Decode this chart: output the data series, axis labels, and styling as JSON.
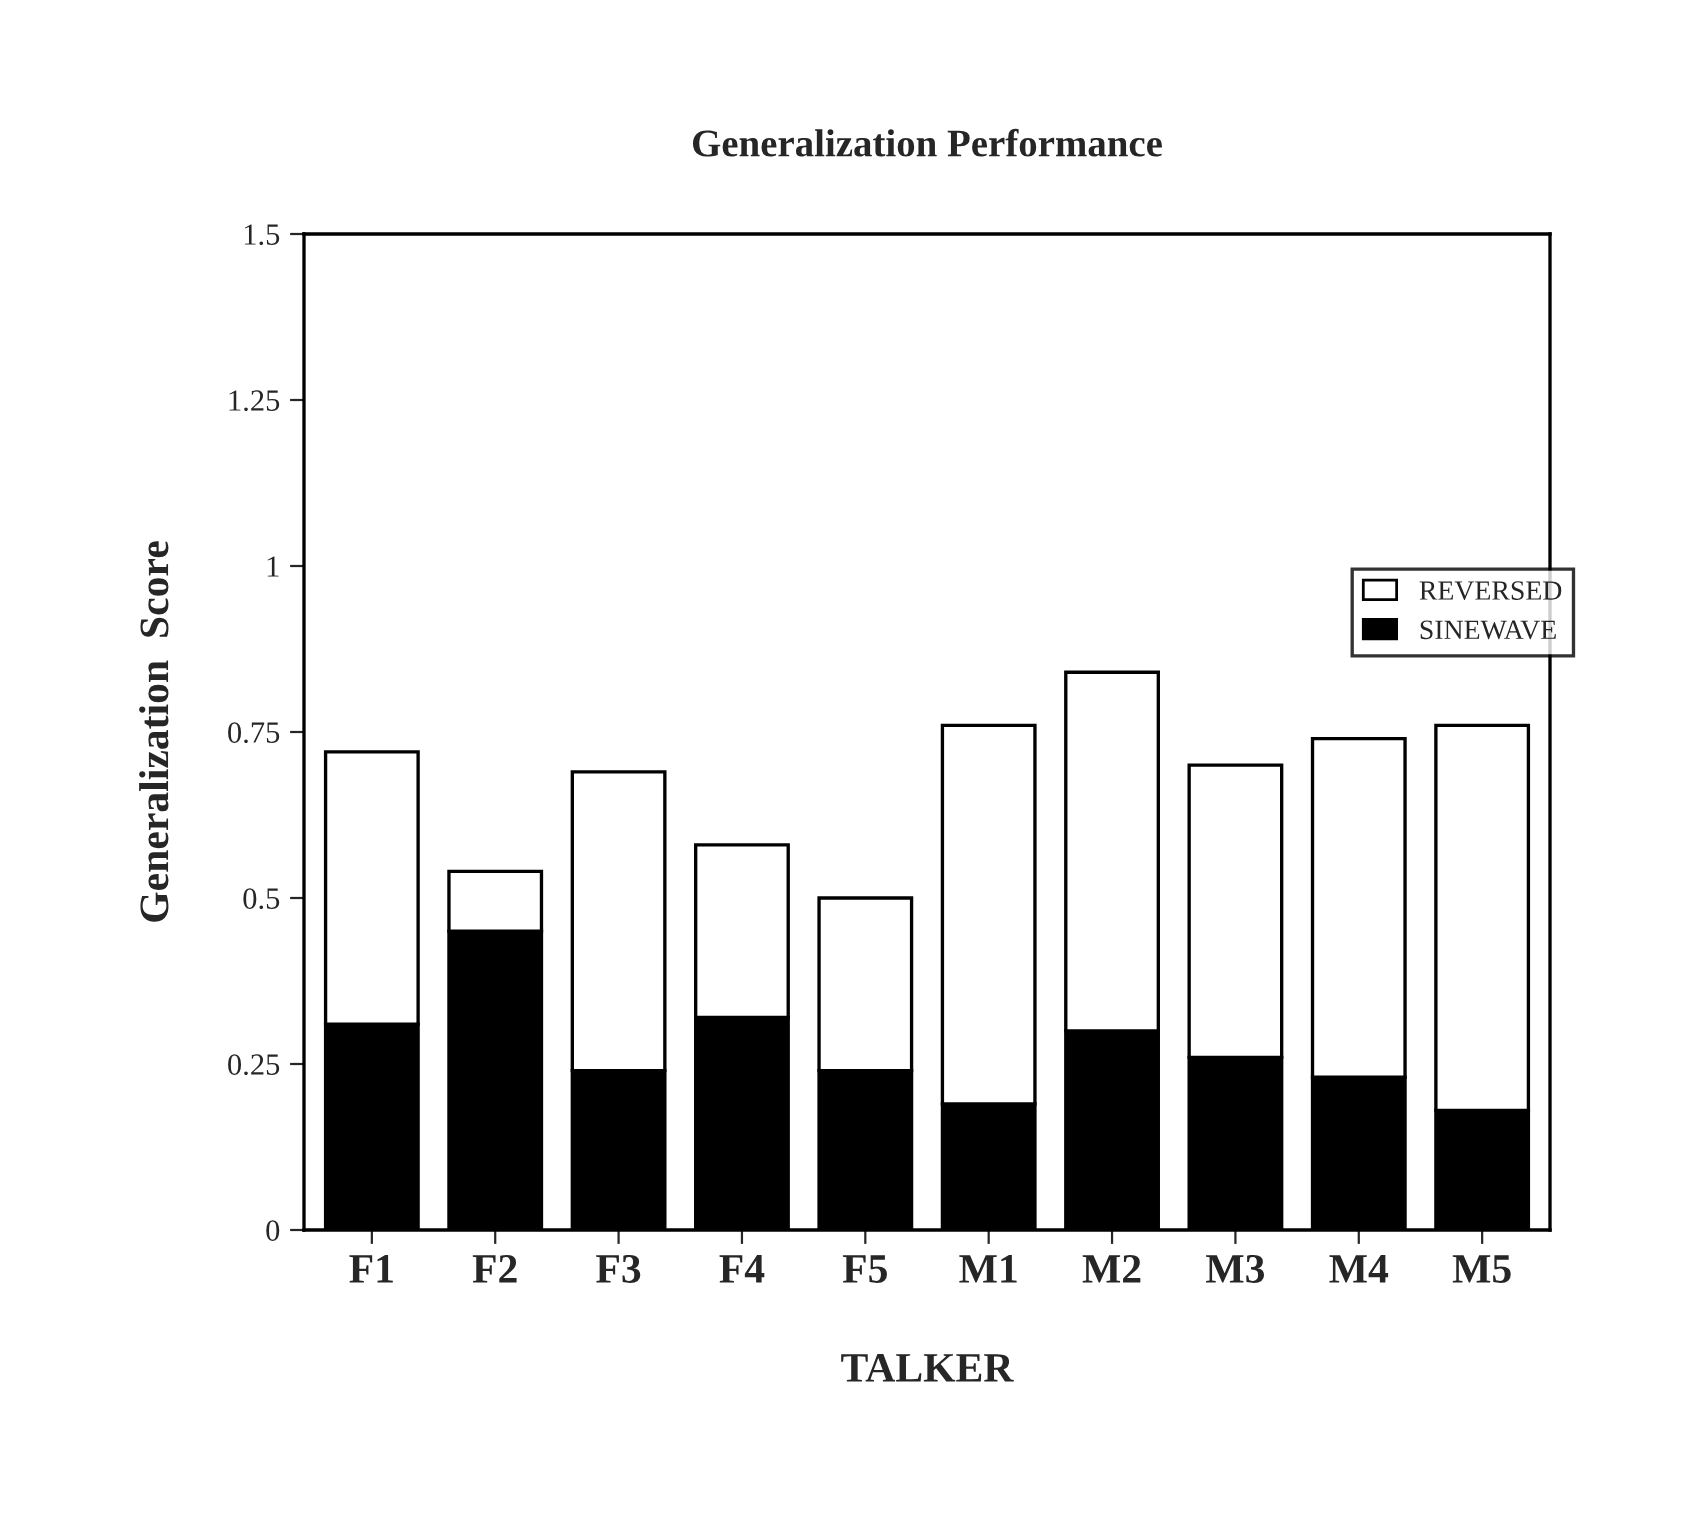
{
  "chart_data": {
    "type": "bar",
    "title": "Generalization Performance",
    "xlabel": "TALKER",
    "ylabel": "Generalization  Score",
    "categories": [
      "F1",
      "F2",
      "F3",
      "F4",
      "F5",
      "M1",
      "M2",
      "M3",
      "M4",
      "M5"
    ],
    "stacked": true,
    "series": [
      {
        "name": "SINEWAVE",
        "color": "#000000",
        "values": [
          0.31,
          0.45,
          0.24,
          0.32,
          0.24,
          0.19,
          0.3,
          0.26,
          0.23,
          0.18
        ]
      },
      {
        "name": "REVERSED",
        "color": "#ffffff",
        "values": [
          0.41,
          0.09,
          0.45,
          0.26,
          0.26,
          0.57,
          0.54,
          0.44,
          0.51,
          0.58
        ]
      }
    ],
    "ylim": [
      0,
      1.5
    ],
    "yticks": [
      0,
      0.25,
      0.5,
      0.75,
      1,
      1.25,
      1.5
    ],
    "grid": false,
    "legend": "right"
  }
}
